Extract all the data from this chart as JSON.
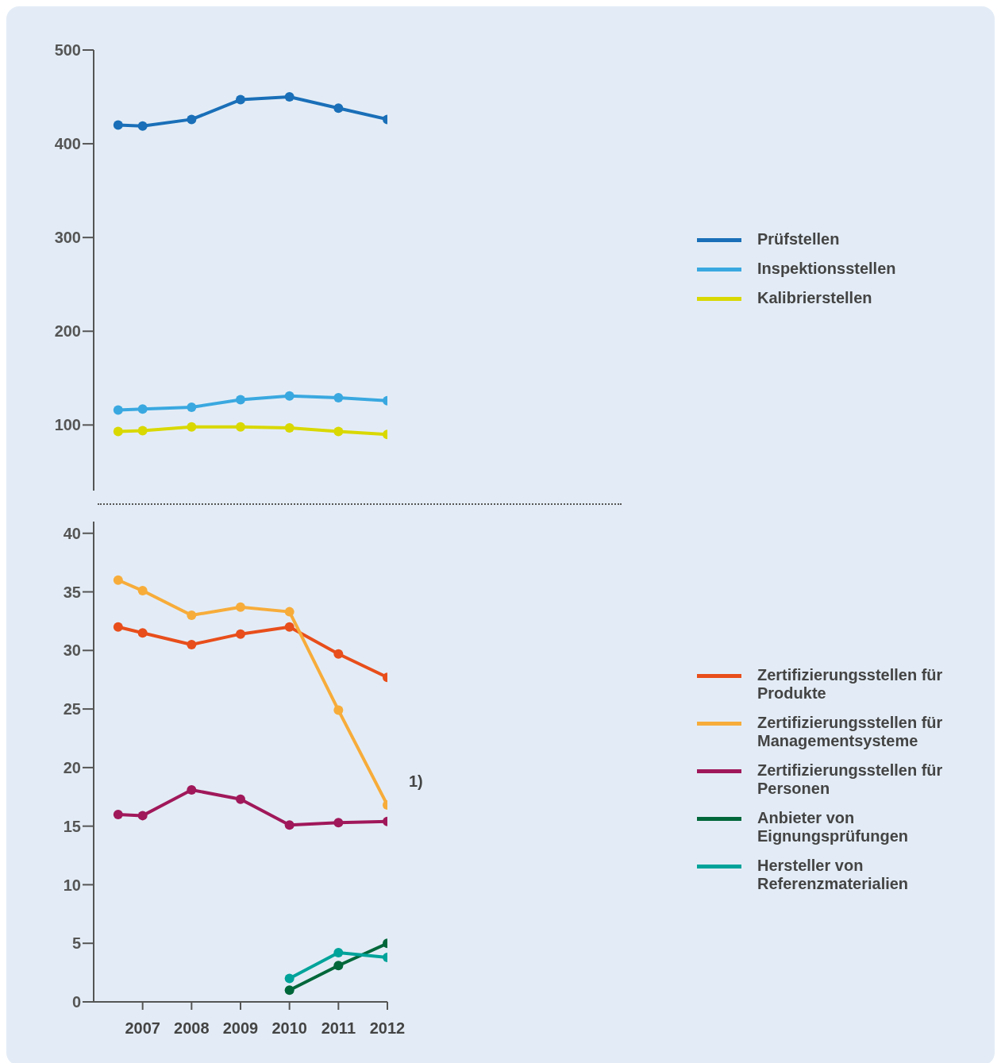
{
  "chart_data": [
    {
      "type": "line",
      "x": [
        2006.5,
        2007,
        2008,
        2009,
        2010,
        2011,
        2012
      ],
      "xlim": [
        2006,
        2012
      ],
      "xticks": [
        2007,
        2008,
        2009,
        2010,
        2011,
        2012
      ],
      "ylim": [
        30,
        500
      ],
      "yticks": [
        100,
        200,
        300,
        400,
        500
      ],
      "tick_labels": "y",
      "marker": "circle",
      "line_style": "solid",
      "grid": false,
      "legend": "right",
      "series": [
        {
          "name": "Prüfstellen",
          "color": "#1a6fb8",
          "values": [
            420,
            419,
            426,
            447,
            450,
            438,
            426
          ]
        },
        {
          "name": "Inspektionsstellen",
          "color": "#3aa8e0",
          "values": [
            116,
            117,
            119,
            127,
            131,
            129,
            126
          ]
        },
        {
          "name": "Kalibrierstellen",
          "color": "#d9d800",
          "values": [
            93,
            94,
            98,
            98,
            97,
            93,
            90
          ]
        }
      ]
    },
    {
      "type": "line",
      "x": [
        2006.5,
        2007,
        2008,
        2009,
        2010,
        2011,
        2012
      ],
      "xlim": [
        2006,
        2012
      ],
      "xticks": [
        2007,
        2008,
        2009,
        2010,
        2011,
        2012
      ],
      "ylim": [
        0,
        41
      ],
      "yticks": [
        0,
        5,
        10,
        15,
        20,
        25,
        30,
        35,
        40
      ],
      "marker": "circle",
      "line_style": "solid",
      "grid": false,
      "legend": "right",
      "annotations": [
        {
          "text": "1)",
          "x": 2012,
          "y": 16.8
        }
      ],
      "series": [
        {
          "name": "Zertifizierungsstellen für Produkte",
          "color": "#e84e1b",
          "values": [
            32.0,
            31.5,
            30.5,
            31.4,
            32.0,
            29.7,
            27.7
          ]
        },
        {
          "name": "Zertifizierungsstellen für Managementsysteme",
          "color": "#f7ac3a",
          "values": [
            36.0,
            35.1,
            33.0,
            33.7,
            33.3,
            24.9,
            16.8
          ]
        },
        {
          "name": "Zertifizierungsstellen für Personen",
          "color": "#a0185a",
          "values": [
            16.0,
            15.9,
            18.1,
            17.3,
            15.1,
            15.3,
            15.4
          ]
        },
        {
          "name": "Anbieter von Eignungsprüfungen",
          "color": "#00673a",
          "values": [
            null,
            null,
            null,
            null,
            1.0,
            3.1,
            5.0
          ]
        },
        {
          "name": "Hersteller von Referenzmaterialien",
          "color": "#00a39a",
          "values": [
            null,
            null,
            null,
            null,
            2.0,
            4.2,
            3.8
          ]
        }
      ]
    }
  ]
}
